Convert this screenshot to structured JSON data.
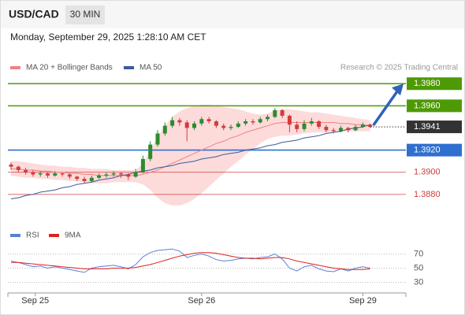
{
  "chart_data": {
    "type": "candlestick",
    "title": "USD/CAD",
    "timeframe": "30 MIN",
    "subtitle": "Monday, September 29, 2025 1:28:10 AM CET",
    "credit": "Research © 2025 Trading Central",
    "ylim": [
      1.3855,
      1.3988
    ],
    "up_color": "#2e8b2e",
    "down_color": "#d23c3c",
    "candles": [
      [
        1.3907,
        1.3909,
        1.3902,
        1.3905
      ],
      [
        1.3905,
        1.3906,
        1.39,
        1.3902
      ],
      [
        1.3902,
        1.3904,
        1.3898,
        1.39
      ],
      [
        1.39,
        1.3902,
        1.3896,
        1.3898
      ],
      [
        1.3898,
        1.3901,
        1.3896,
        1.3899
      ],
      [
        1.3899,
        1.39,
        1.3895,
        1.3897
      ],
      [
        1.3897,
        1.3901,
        1.3896,
        1.3899
      ],
      [
        1.3899,
        1.39,
        1.3896,
        1.3898
      ],
      [
        1.3898,
        1.3899,
        1.3894,
        1.3896
      ],
      [
        1.3896,
        1.3897,
        1.3892,
        1.3894
      ],
      [
        1.3894,
        1.3896,
        1.389,
        1.3892
      ],
      [
        1.3892,
        1.3897,
        1.3891,
        1.3895
      ],
      [
        1.3895,
        1.3899,
        1.3894,
        1.3897
      ],
      [
        1.3897,
        1.39,
        1.3895,
        1.3898
      ],
      [
        1.3898,
        1.3901,
        1.3896,
        1.3899
      ],
      [
        1.3899,
        1.39,
        1.3895,
        1.3898
      ],
      [
        1.3898,
        1.3899,
        1.3893,
        1.3896
      ],
      [
        1.3896,
        1.3903,
        1.3895,
        1.39
      ],
      [
        1.39,
        1.3915,
        1.3899,
        1.3912
      ],
      [
        1.3912,
        1.3928,
        1.391,
        1.3925
      ],
      [
        1.3925,
        1.3938,
        1.3923,
        1.3935
      ],
      [
        1.3935,
        1.3945,
        1.3933,
        1.3942
      ],
      [
        1.3942,
        1.395,
        1.394,
        1.3947
      ],
      [
        1.3947,
        1.3949,
        1.3942,
        1.3945
      ],
      [
        1.3945,
        1.3947,
        1.3928,
        1.394
      ],
      [
        1.394,
        1.3946,
        1.3938,
        1.3944
      ],
      [
        1.3944,
        1.395,
        1.3942,
        1.3948
      ],
      [
        1.3948,
        1.395,
        1.3944,
        1.3946
      ],
      [
        1.3946,
        1.3947,
        1.394,
        1.3942
      ],
      [
        1.3942,
        1.3944,
        1.3938,
        1.394
      ],
      [
        1.394,
        1.3943,
        1.3938,
        1.3941
      ],
      [
        1.3941,
        1.3946,
        1.394,
        1.3944
      ],
      [
        1.3944,
        1.3948,
        1.3942,
        1.3946
      ],
      [
        1.3946,
        1.3948,
        1.3943,
        1.3945
      ],
      [
        1.3945,
        1.395,
        1.3944,
        1.3948
      ],
      [
        1.3948,
        1.3952,
        1.3946,
        1.395
      ],
      [
        1.395,
        1.3958,
        1.3949,
        1.3956
      ],
      [
        1.3956,
        1.3957,
        1.3949,
        1.3951
      ],
      [
        1.3951,
        1.3952,
        1.3936,
        1.3943
      ],
      [
        1.3943,
        1.3946,
        1.3936,
        1.3939
      ],
      [
        1.3939,
        1.3947,
        1.3937,
        1.3944
      ],
      [
        1.3944,
        1.3949,
        1.3942,
        1.3946
      ],
      [
        1.3946,
        1.3947,
        1.3939,
        1.3941
      ],
      [
        1.3941,
        1.3943,
        1.3936,
        1.3938
      ],
      [
        1.3938,
        1.394,
        1.3935,
        1.3937
      ],
      [
        1.3937,
        1.3942,
        1.3936,
        1.394
      ],
      [
        1.394,
        1.3941,
        1.3936,
        1.3938
      ],
      [
        1.3938,
        1.3943,
        1.3937,
        1.3941
      ],
      [
        1.3941,
        1.3945,
        1.394,
        1.3943
      ],
      [
        1.3943,
        1.3944,
        1.394,
        1.3941
      ]
    ],
    "overlays": [
      {
        "name": "MA 20 + Bollinger Bands",
        "color": "#f08080",
        "band_color": "#fdd5d5",
        "values": [
          1.3903,
          1.3903,
          1.3902,
          1.3902,
          1.3901,
          1.3901,
          1.39,
          1.39,
          1.3899,
          1.3899,
          1.3898,
          1.3898,
          1.3897,
          1.3897,
          1.3897,
          1.3897,
          1.3897,
          1.3897,
          1.3898,
          1.39,
          1.3902,
          1.3905,
          1.3908,
          1.3911,
          1.3914,
          1.3917,
          1.392,
          1.3923,
          1.3926,
          1.3928,
          1.3931,
          1.3933,
          1.3936,
          1.3938,
          1.394,
          1.3942,
          1.3944,
          1.3945,
          1.3945,
          1.3945,
          1.3945,
          1.3945,
          1.3945,
          1.3945,
          1.3945,
          1.3944,
          1.3944,
          1.3943,
          1.3943,
          1.3942
        ],
        "upper": [
          1.391,
          1.391,
          1.3909,
          1.3908,
          1.3907,
          1.3906,
          1.3906,
          1.3905,
          1.3905,
          1.3904,
          1.3904,
          1.3903,
          1.3903,
          1.3903,
          1.3902,
          1.3902,
          1.3902,
          1.3902,
          1.3908,
          1.392,
          1.3932,
          1.3942,
          1.395,
          1.3955,
          1.3958,
          1.396,
          1.3961,
          1.3961,
          1.396,
          1.3959,
          1.3958,
          1.3957,
          1.3955,
          1.3953,
          1.3952,
          1.3953,
          1.3956,
          1.3957,
          1.3957,
          1.3956,
          1.3955,
          1.3954,
          1.3954,
          1.3953,
          1.3952,
          1.3951,
          1.395,
          1.3949,
          1.3948,
          1.3947
        ],
        "lower": [
          1.3897,
          1.3896,
          1.3895,
          1.3895,
          1.3894,
          1.3894,
          1.3893,
          1.3893,
          1.3892,
          1.3892,
          1.3891,
          1.389,
          1.389,
          1.389,
          1.3891,
          1.3891,
          1.3891,
          1.3891,
          1.3889,
          1.3884,
          1.3877,
          1.3872,
          1.387,
          1.387,
          1.3872,
          1.3876,
          1.3881,
          1.3887,
          1.3893,
          1.3899,
          1.3905,
          1.391,
          1.3916,
          1.3921,
          1.3926,
          1.393,
          1.3932,
          1.3933,
          1.3933,
          1.3934,
          1.3935,
          1.3936,
          1.3936,
          1.3936,
          1.3937,
          1.3937,
          1.3937,
          1.3937,
          1.3937,
          1.3937
        ]
      },
      {
        "name": "MA 50",
        "color": "#3a5a9a",
        "values": [
          1.3876,
          1.3877,
          1.3879,
          1.388,
          1.3882,
          1.3883,
          1.3884,
          1.3886,
          1.3887,
          1.3889,
          1.389,
          1.3891,
          1.3893,
          1.3894,
          1.3895,
          1.3897,
          1.3898,
          1.39,
          1.3901,
          1.3902,
          1.3904,
          1.3905,
          1.3906,
          1.3908,
          1.3909,
          1.391,
          1.3912,
          1.3913,
          1.3914,
          1.3916,
          1.3917,
          1.3918,
          1.392,
          1.3921,
          1.3922,
          1.3924,
          1.3925,
          1.3927,
          1.3928,
          1.3929,
          1.3931,
          1.3932,
          1.3933,
          1.3935,
          1.3936,
          1.3937,
          1.3939,
          1.394,
          1.3941,
          1.3943
        ]
      }
    ],
    "levels": [
      {
        "value": 1.398,
        "label": "1.3980",
        "color": "#4e9a06",
        "boxed": true
      },
      {
        "value": 1.396,
        "label": "1.3960",
        "color": "#4e9a06",
        "boxed": true
      },
      {
        "value": 1.392,
        "label": "1.3920",
        "color": "#2f6fd0",
        "boxed": true
      },
      {
        "value": 1.39,
        "label": "1.3900",
        "color": "#d23c3c",
        "boxed": false
      },
      {
        "value": 1.388,
        "label": "1.3880",
        "color": "#d23c3c",
        "boxed": false
      }
    ],
    "last": {
      "value": 1.3941,
      "label": "1.3941",
      "color": "#333333"
    },
    "xticks": [
      {
        "value": 3.3,
        "label": "Sep 25"
      },
      {
        "value": 26,
        "label": "Sep 26"
      },
      {
        "value": 48,
        "label": "Sep 29"
      }
    ],
    "indicator": {
      "ylim": [
        15,
        85
      ],
      "yticks": [
        70,
        50,
        30
      ],
      "series": [
        {
          "name": "RSI",
          "color": "#5b7fd6",
          "values": [
            60,
            58,
            55,
            52,
            53,
            50,
            52,
            50,
            48,
            46,
            44,
            50,
            52,
            53,
            54,
            52,
            49,
            55,
            66,
            72,
            75,
            76,
            77,
            74,
            65,
            68,
            70,
            67,
            62,
            60,
            61,
            63,
            64,
            63,
            65,
            66,
            70,
            63,
            50,
            46,
            52,
            54,
            49,
            46,
            45,
            49,
            46,
            50,
            52,
            50
          ]
        },
        {
          "name": "9MA",
          "color": "#e02020",
          "values": [
            58,
            58,
            57,
            56,
            55,
            54,
            53,
            52,
            51,
            50,
            49,
            49,
            49,
            49,
            50,
            50,
            50,
            51,
            53,
            55,
            58,
            61,
            64,
            67,
            69,
            71,
            72,
            72,
            71,
            69,
            67,
            65,
            64,
            64,
            63,
            64,
            65,
            65,
            63,
            60,
            58,
            56,
            54,
            52,
            50,
            49,
            48,
            48,
            48,
            49
          ]
        }
      ]
    }
  }
}
